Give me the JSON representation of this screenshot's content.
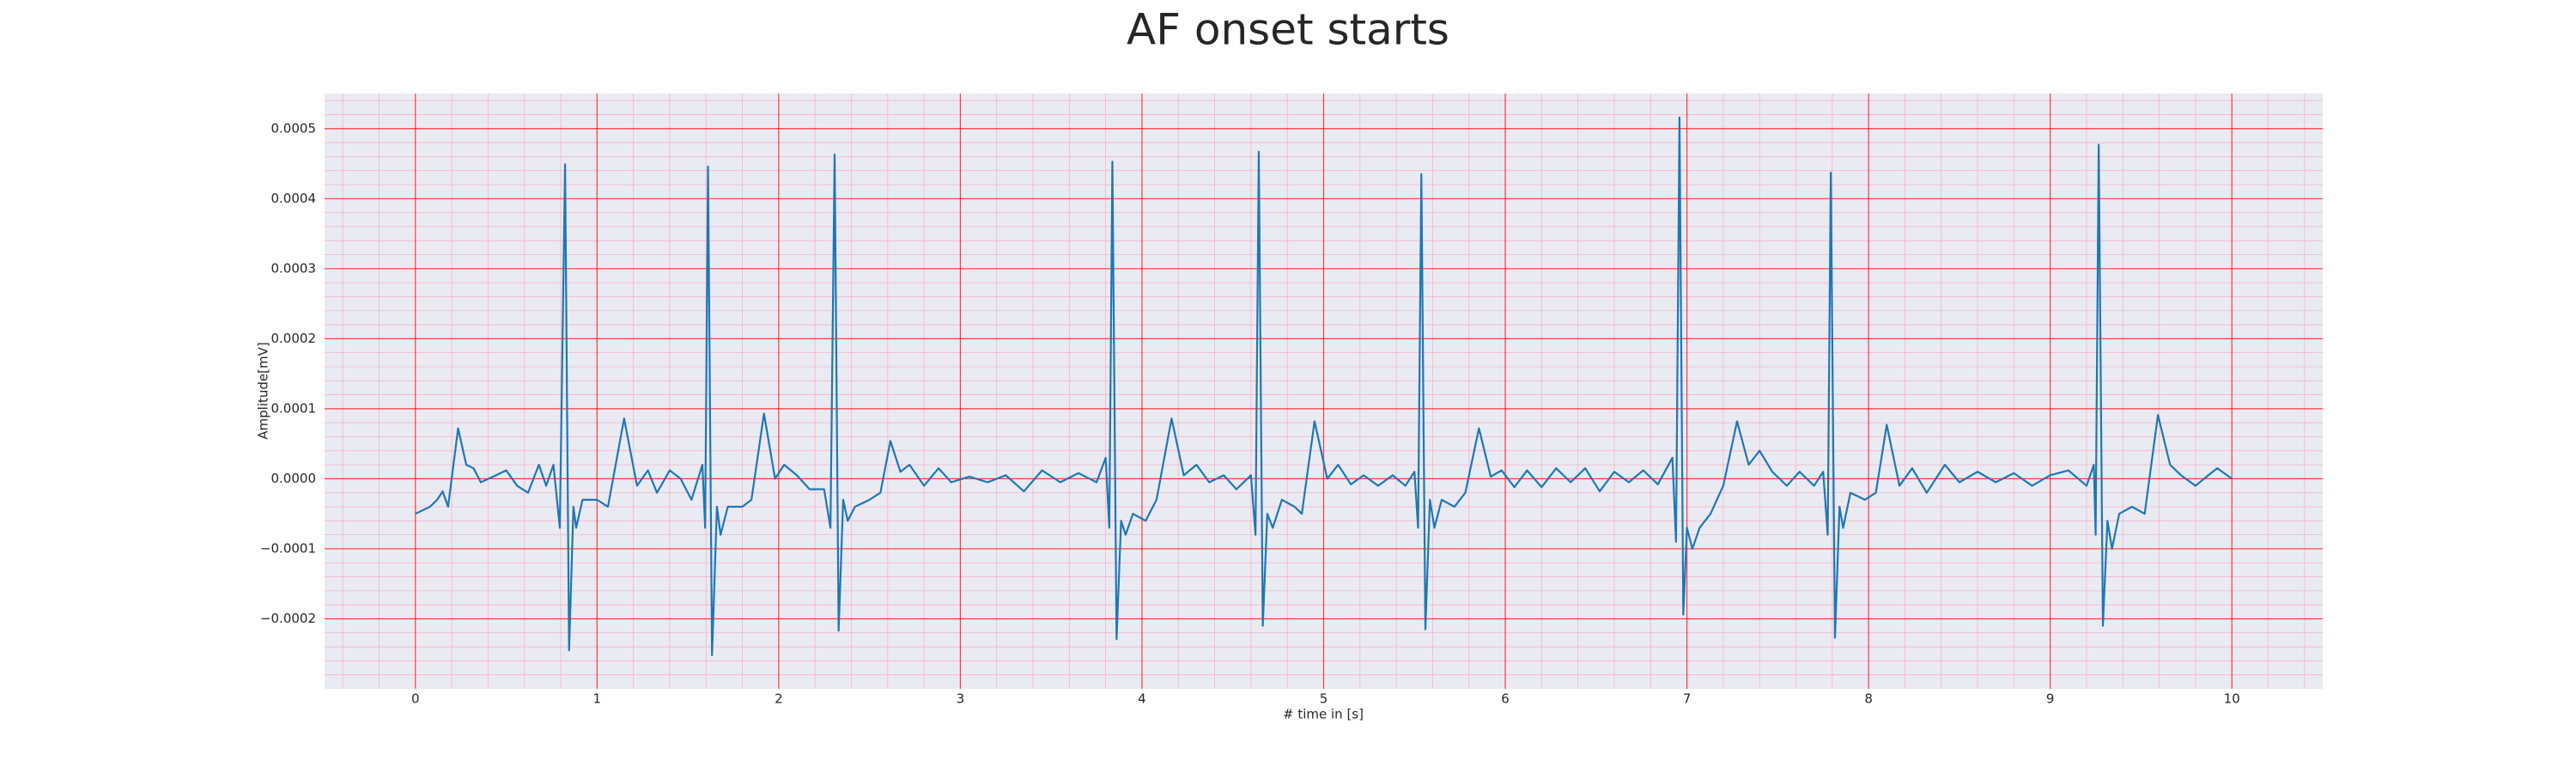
{
  "chart_data": {
    "type": "line",
    "title": "AF onset starts",
    "x_label": "# time in [s]",
    "y_label": "Amplitude[mV]",
    "xlim": [
      -0.5,
      10.5
    ],
    "ylim": [
      -0.0003,
      0.00055
    ],
    "xticks": [
      0,
      1,
      2,
      3,
      4,
      5,
      6,
      7,
      8,
      9,
      10
    ],
    "yticks": [
      {
        "value": -0.0002,
        "label": "−0.0002"
      },
      {
        "value": -0.0001,
        "label": "−0.0001"
      },
      {
        "value": 0,
        "label": "0.0000"
      },
      0.0001,
      0.0002,
      0.0003,
      0.0004,
      0.0005
    ],
    "grid": true,
    "minor_grid": true,
    "grid_color": "#ff0000",
    "minor_grid_color": "#f4b6c8",
    "background": "#eaeaf2",
    "x": [
      0,
      0.08,
      0.12,
      0.15,
      0.18,
      0.235,
      0.28,
      0.32,
      0.36,
      0.42,
      0.5,
      0.56,
      0.62,
      0.68,
      0.72,
      0.76,
      0.795,
      0.824,
      0.846,
      0.87,
      0.885,
      0.92,
      1.0,
      1.06,
      1.149,
      1.22,
      1.28,
      1.33,
      1.4,
      1.46,
      1.52,
      1.58,
      1.595,
      1.611,
      1.633,
      1.66,
      1.68,
      1.72,
      1.8,
      1.85,
      1.919,
      1.98,
      2.03,
      2.1,
      2.17,
      2.25,
      2.285,
      2.308,
      2.33,
      2.355,
      2.38,
      2.42,
      2.5,
      2.56,
      2.615,
      2.67,
      2.72,
      2.8,
      2.88,
      2.95,
      3.05,
      3.15,
      3.25,
      3.35,
      3.45,
      3.55,
      3.65,
      3.75,
      3.8,
      3.82,
      3.837,
      3.86,
      3.885,
      3.91,
      3.95,
      4.02,
      4.08,
      4.163,
      4.23,
      4.3,
      4.37,
      4.45,
      4.52,
      4.6,
      4.625,
      4.643,
      4.665,
      4.69,
      4.72,
      4.77,
      4.84,
      4.88,
      4.95,
      5.02,
      5.08,
      5.15,
      5.22,
      5.3,
      5.38,
      5.45,
      5.5,
      5.52,
      5.538,
      5.56,
      5.585,
      5.61,
      5.65,
      5.72,
      5.78,
      5.855,
      5.92,
      5.98,
      6.05,
      6.12,
      6.2,
      6.28,
      6.36,
      6.44,
      6.52,
      6.6,
      6.68,
      6.76,
      6.84,
      6.92,
      6.94,
      6.959,
      6.98,
      7.0,
      7.03,
      7.07,
      7.13,
      7.2,
      7.276,
      7.34,
      7.4,
      7.47,
      7.55,
      7.62,
      7.7,
      7.75,
      7.775,
      7.792,
      7.815,
      7.84,
      7.86,
      7.9,
      7.98,
      8.04,
      8.1,
      8.17,
      8.24,
      8.32,
      8.42,
      8.5,
      8.6,
      8.7,
      8.8,
      8.9,
      9.0,
      9.1,
      9.2,
      9.24,
      9.25,
      9.267,
      9.29,
      9.315,
      9.34,
      9.38,
      9.45,
      9.52,
      9.593,
      9.66,
      9.72,
      9.8,
      9.87,
      9.92,
      10.0
    ],
    "series": [
      {
        "color": "#1f77b4",
        "values": [
          -5e-05,
          -4e-05,
          -3e-05,
          -1.8e-05,
          -4e-05,
          7.2e-05,
          2e-05,
          1.5e-05,
          -5e-06,
          2e-06,
          1.2e-05,
          -1e-05,
          -2e-05,
          2e-05,
          -1e-05,
          2e-05,
          -7e-05,
          0.000449,
          -0.000245,
          -4e-05,
          -7e-05,
          -3e-05,
          -3e-05,
          -4e-05,
          8.6e-05,
          -1e-05,
          1.2e-05,
          -2e-05,
          1.2e-05,
          0,
          -3e-05,
          2e-05,
          -7e-05,
          0.000446,
          -0.000252,
          -4e-05,
          -8e-05,
          -4e-05,
          -4e-05,
          -3e-05,
          9.3e-05,
          0,
          2e-05,
          5e-06,
          -1.5e-05,
          -1.5e-05,
          -7e-05,
          0.000463,
          -0.000217,
          -3e-05,
          -6e-05,
          -4e-05,
          -3e-05,
          -2e-05,
          5.4e-05,
          1e-05,
          2e-05,
          -1e-05,
          1.5e-05,
          -5e-06,
          3e-06,
          -5e-06,
          5e-06,
          -1.8e-05,
          1.2e-05,
          -5e-06,
          8e-06,
          -5e-06,
          3e-05,
          -7e-05,
          0.000453,
          -0.000229,
          -6e-05,
          -8e-05,
          -5e-05,
          -6e-05,
          -3e-05,
          8.6e-05,
          5e-06,
          2e-05,
          -5e-06,
          5e-06,
          -1.5e-05,
          5e-06,
          -8e-05,
          0.000467,
          -0.00021,
          -5e-05,
          -7e-05,
          -3e-05,
          -4e-05,
          -5e-05,
          8.2e-05,
          0,
          2e-05,
          -8e-06,
          5e-06,
          -1e-05,
          5e-06,
          -1e-05,
          1e-05,
          -7e-05,
          0.000435,
          -0.000215,
          -3e-05,
          -7e-05,
          -3e-05,
          -4e-05,
          -2e-05,
          7.2e-05,
          3e-06,
          1.2e-05,
          -1.2e-05,
          1.2e-05,
          -1.2e-05,
          1.5e-05,
          -5e-06,
          1.5e-05,
          -1.8e-05,
          1e-05,
          -5e-06,
          1.2e-05,
          -8e-06,
          3e-05,
          -9e-05,
          0.000516,
          -0.000194,
          -7e-05,
          -0.0001,
          -7e-05,
          -5e-05,
          -1e-05,
          8.2e-05,
          2e-05,
          4e-05,
          1e-05,
          -1e-05,
          1e-05,
          -1e-05,
          1e-05,
          -8e-05,
          0.000437,
          -0.000227,
          -4e-05,
          -7e-05,
          -2e-05,
          -3e-05,
          -2e-05,
          7.7e-05,
          -1e-05,
          1.5e-05,
          -2e-05,
          2e-05,
          -5e-06,
          1e-05,
          -5e-06,
          8e-06,
          -1e-05,
          5e-06,
          1.2e-05,
          -1e-05,
          2e-05,
          -8e-05,
          0.000477,
          -0.00021,
          -6e-05,
          -0.0001,
          -5e-05,
          -4e-05,
          -5e-05,
          9.1e-05,
          2e-05,
          5e-06,
          -1e-05,
          5e-06,
          1.5e-05,
          0
        ]
      }
    ]
  }
}
